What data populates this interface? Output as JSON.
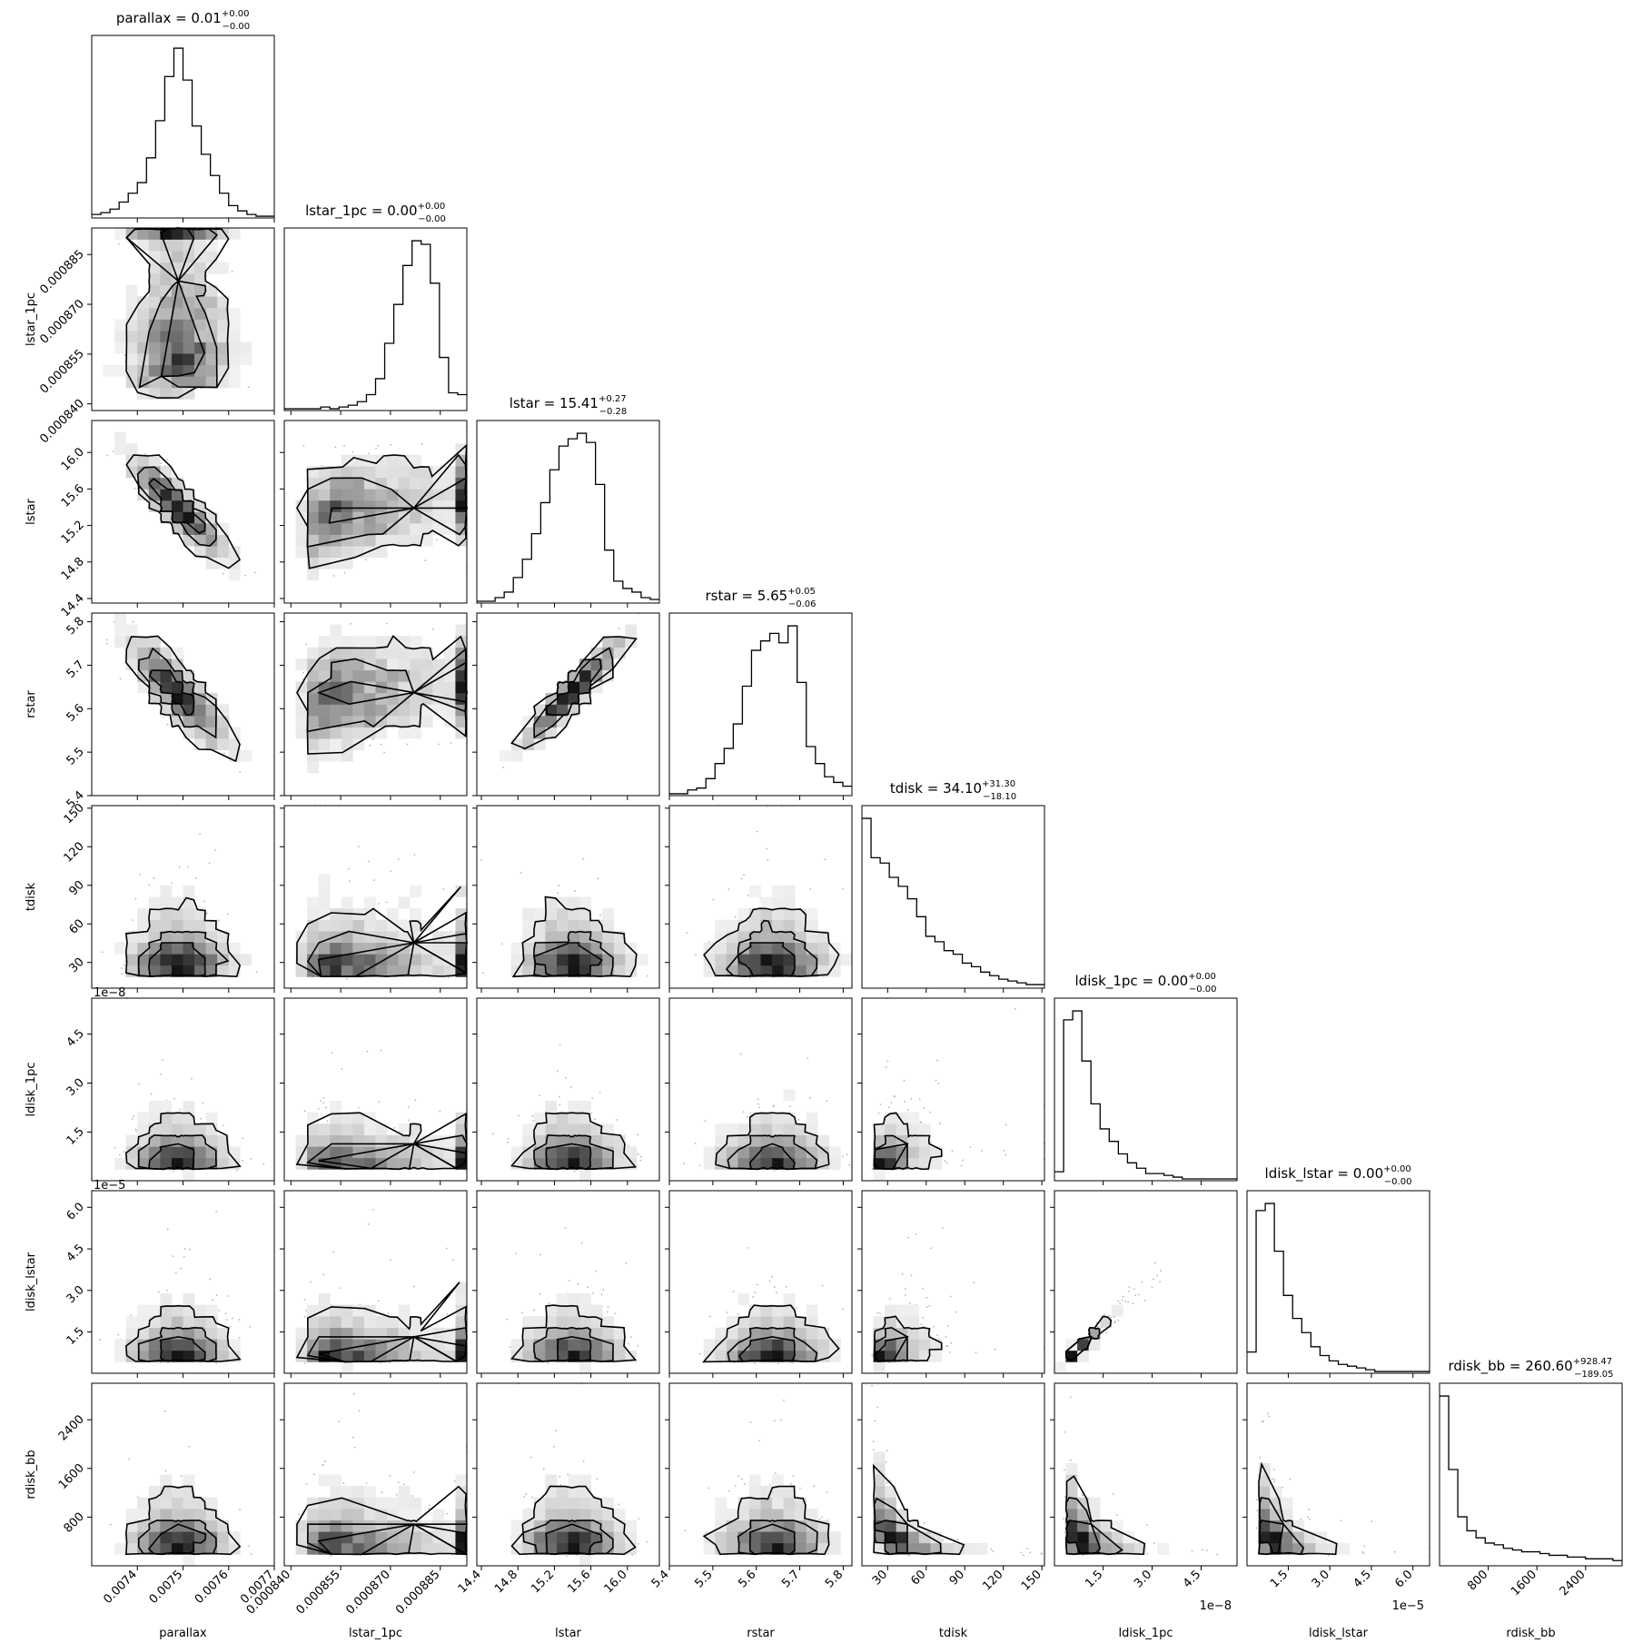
{
  "chart_data": {
    "type": "corner",
    "parameters": [
      {
        "name": "parallax",
        "label": "parallax",
        "title": {
          "prefix": "parallax = ",
          "value": "0.01",
          "plus": "+0.00",
          "minus": "−0.00"
        },
        "range": [
          0.0073,
          0.0077
        ],
        "ticks": [
          0.0074,
          0.0075,
          0.0076,
          0.0077
        ],
        "tick_labels": [
          "0.0074",
          "0.0075",
          "0.0076",
          "0.0077"
        ],
        "hist_ranges": [
          [
            0.0073,
            0.0077
          ]
        ],
        "hist": [
          2,
          3,
          5,
          9,
          14,
          20,
          34,
          55,
          80,
          96,
          78,
          52,
          36,
          24,
          14,
          7,
          4,
          2,
          1,
          1
        ]
      },
      {
        "name": "lstar_1pc",
        "label": "lstar_1pc",
        "title": {
          "prefix": "lstar_1pc = ",
          "value": "0.00",
          "plus": "+0.00",
          "minus": "−0.00"
        },
        "range": [
          0.000838,
          0.000893
        ],
        "ticks": [
          0.00084,
          0.000855,
          0.00087,
          0.000885
        ],
        "tick_labels": [
          "0.000840",
          "0.000855",
          "0.000870",
          "0.000885"
        ],
        "hist": [
          1,
          1,
          1,
          1,
          2,
          1,
          2,
          3,
          5,
          9,
          18,
          38,
          60,
          82,
          96,
          94,
          72,
          30,
          10,
          9
        ]
      },
      {
        "name": "lstar",
        "label": "lstar",
        "title": {
          "prefix": "lstar = ",
          "value": "15.41",
          "plus": "+0.27",
          "minus": "−0.28"
        },
        "range": [
          14.35,
          16.35
        ],
        "ticks": [
          14.4,
          14.8,
          15.2,
          15.6,
          16.0
        ],
        "tick_labels": [
          "14.4",
          "14.8",
          "15.2",
          "15.6",
          "16.0"
        ],
        "hist": [
          1,
          1,
          3,
          6,
          14,
          24,
          38,
          55,
          73,
          86,
          90,
          93,
          88,
          65,
          29,
          12,
          8,
          6,
          3,
          2
        ]
      },
      {
        "name": "rstar",
        "label": "rstar",
        "title": {
          "prefix": "rstar = ",
          "value": "5.65",
          "plus": "+0.05",
          "minus": "−0.06"
        },
        "range": [
          5.4,
          5.82
        ],
        "ticks": [
          5.4,
          5.5,
          5.6,
          5.7,
          5.8
        ],
        "tick_labels": [
          "5.4",
          "5.5",
          "5.6",
          "5.7",
          "5.8"
        ],
        "hist": [
          1,
          1,
          3,
          4,
          9,
          17,
          25,
          38,
          58,
          77,
          82,
          86,
          81,
          90,
          60,
          26,
          17,
          10,
          7,
          5
        ]
      },
      {
        "name": "tdisk",
        "label": "tdisk",
        "title": {
          "prefix": "tdisk = ",
          "value": "34.10",
          "plus": "+31.30",
          "minus": "−18.10"
        },
        "range": [
          10,
          152
        ],
        "ticks": [
          30,
          60,
          90,
          120,
          150
        ],
        "tick_labels": [
          "30",
          "60",
          "90",
          "120",
          "150"
        ],
        "hist": [
          95,
          73,
          70,
          62,
          57,
          50,
          40,
          29,
          26,
          21,
          19,
          14,
          12,
          9,
          7,
          5,
          4,
          3,
          2,
          2
        ]
      },
      {
        "name": "ldisk_1pc",
        "label": "ldisk_1pc",
        "title": {
          "prefix": "ldisk_1pc = ",
          "value": "0.00",
          "plus": "+0.00",
          "minus": "−0.00"
        },
        "range": [
          1e-10,
          5.6e-08
        ],
        "ticks": [
          1.5e-08,
          3e-08,
          4.5e-08
        ],
        "tick_labels": [
          "1.5",
          "3.0",
          "4.5"
        ],
        "offset_text": "1e−8",
        "hist": [
          5,
          90,
          95,
          67,
          43,
          29,
          22,
          15,
          10,
          7,
          4,
          4,
          3,
          2,
          1,
          1,
          1,
          1,
          1,
          1
        ]
      },
      {
        "name": "ldisk_lstar",
        "label": "ldisk_lstar",
        "title": {
          "prefix": "ldisk_lstar = ",
          "value": "0.00",
          "plus": "+0.00",
          "minus": "−0.00"
        },
        "range": [
          1e-07,
          6.6e-05
        ],
        "ticks": [
          1.5e-05,
          3e-05,
          4.5e-05,
          6e-05
        ],
        "tick_labels": [
          "1.5",
          "3.0",
          "4.5",
          "6.0"
        ],
        "offset_text": "1e−5",
        "hist": [
          12,
          92,
          96,
          69,
          44,
          31,
          23,
          15,
          10,
          7,
          5,
          4,
          3,
          2,
          1,
          1,
          1,
          1,
          1,
          1
        ]
      },
      {
        "name": "rdisk_bb",
        "label": "rdisk_bb",
        "title": {
          "prefix": "rdisk_bb = ",
          "value": "260.60",
          "plus": "+928.47",
          "minus": "−189.05"
        },
        "range": [
          0,
          3000
        ],
        "ticks": [
          800,
          1600,
          2400
        ],
        "tick_labels": [
          "800",
          "1600",
          "2400"
        ],
        "hist": [
          97,
          55,
          28,
          20,
          16,
          13,
          12,
          10,
          9,
          8,
          8,
          7,
          6,
          6,
          5,
          5,
          4,
          4,
          4,
          3
        ]
      }
    ],
    "left_offset_texts": {
      "ldisk_1pc": "1e−8",
      "ldisk_lstar": "1e−5"
    },
    "sample_scatter": "grey points",
    "contour_levels": 4
  }
}
